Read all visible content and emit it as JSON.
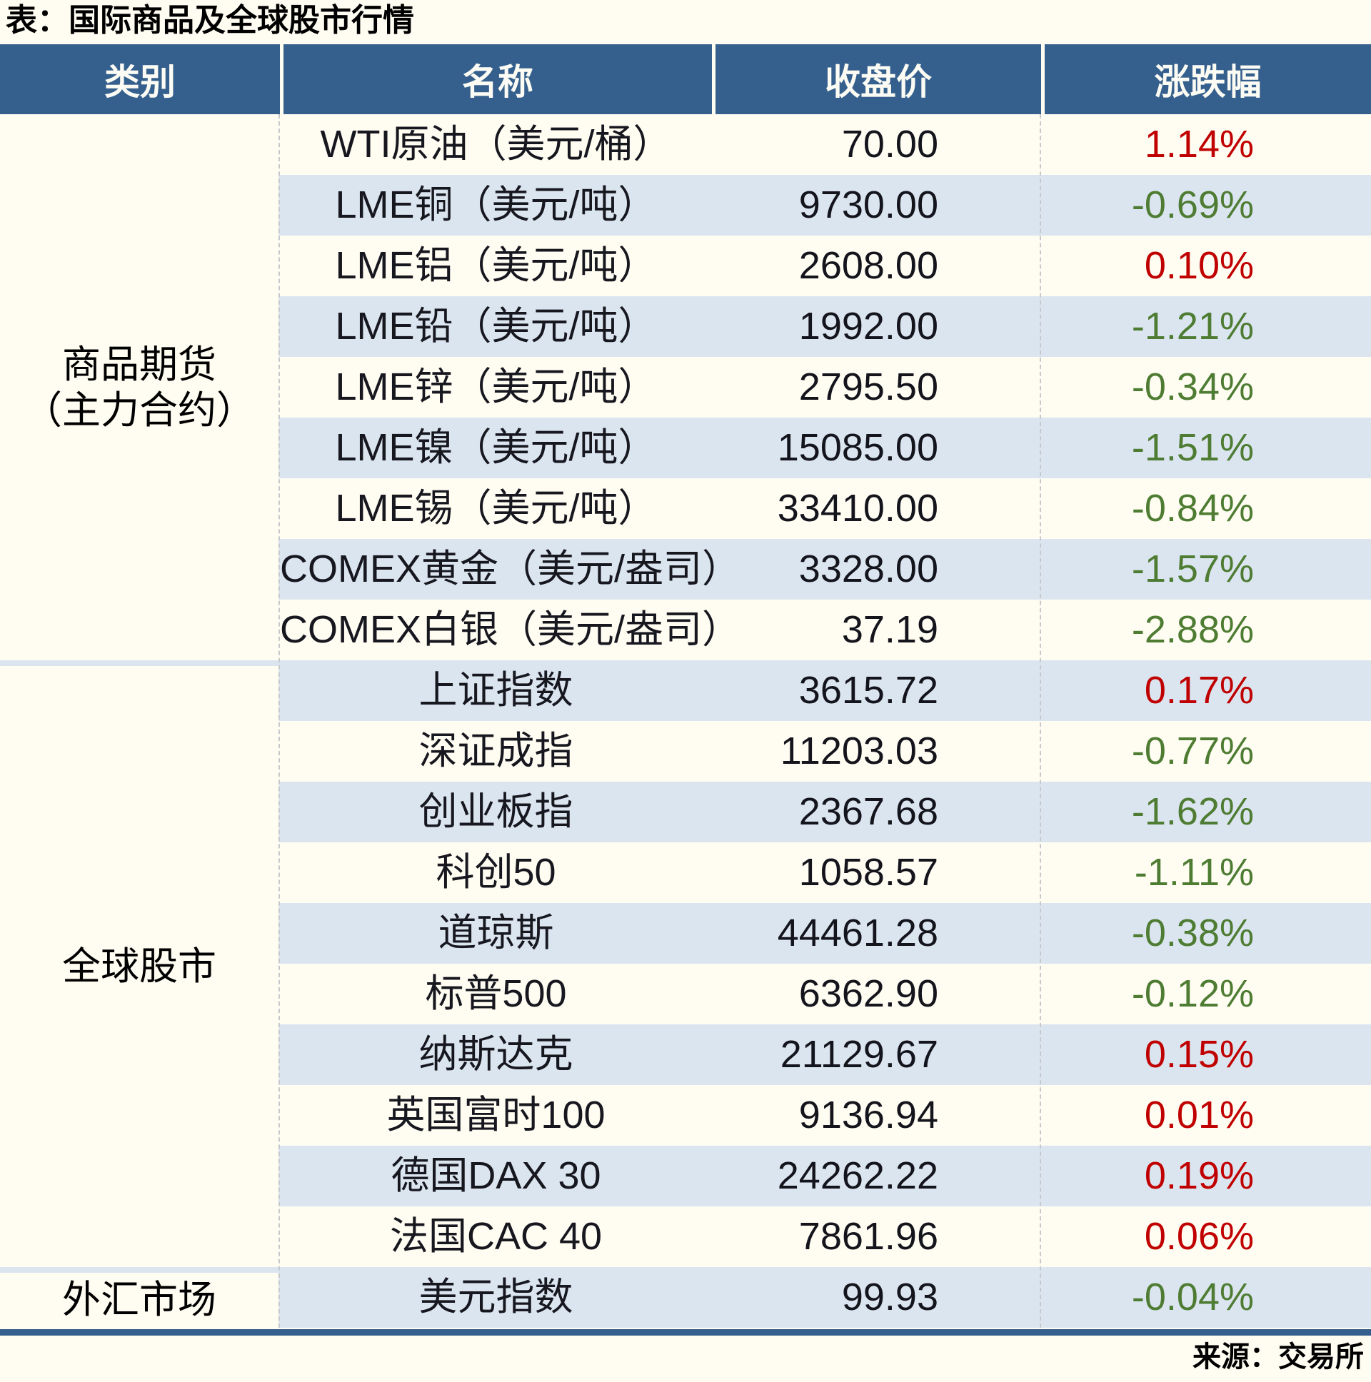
{
  "title": "表：国际商品及全球股市行情",
  "source": "来源：交易所",
  "columns": [
    "类别",
    "名称",
    "收盘价",
    "涨跌幅"
  ],
  "colors": {
    "header_blue": "#35608D",
    "stripe_blue": "#DBE5F0",
    "background_cream": "#FFFDF2",
    "up_red": "#C00000",
    "down_green": "#4E7C32"
  },
  "sections": [
    {
      "label": "商品期货",
      "label2": "（主力合约）",
      "rows": [
        {
          "name": "WTI原油（美元/桶）",
          "close": "70.00",
          "chg": "1.14%",
          "dir": "up"
        },
        {
          "name": "LME铜（美元/吨）",
          "close": "9730.00",
          "chg": "-0.69%",
          "dir": "down"
        },
        {
          "name": "LME铝（美元/吨）",
          "close": "2608.00",
          "chg": "0.10%",
          "dir": "up"
        },
        {
          "name": "LME铅（美元/吨）",
          "close": "1992.00",
          "chg": "-1.21%",
          "dir": "down"
        },
        {
          "name": "LME锌（美元/吨）",
          "close": "2795.50",
          "chg": "-0.34%",
          "dir": "down"
        },
        {
          "name": "LME镍（美元/吨）",
          "close": "15085.00",
          "chg": "-1.51%",
          "dir": "down"
        },
        {
          "name": "LME锡（美元/吨）",
          "close": "33410.00",
          "chg": "-0.84%",
          "dir": "down"
        },
        {
          "name": "COMEX黄金（美元/盎司）",
          "close": "3328.00",
          "chg": "-1.57%",
          "dir": "down"
        },
        {
          "name": "COMEX白银（美元/盎司）",
          "close": "37.19",
          "chg": "-2.88%",
          "dir": "down"
        }
      ]
    },
    {
      "label": "全球股市",
      "label2": "",
      "rows": [
        {
          "name": "上证指数",
          "close": "3615.72",
          "chg": "0.17%",
          "dir": "up"
        },
        {
          "name": "深证成指",
          "close": "11203.03",
          "chg": "-0.77%",
          "dir": "down"
        },
        {
          "name": "创业板指",
          "close": "2367.68",
          "chg": "-1.62%",
          "dir": "down"
        },
        {
          "name": "科创50",
          "close": "1058.57",
          "chg": "-1.11%",
          "dir": "down"
        },
        {
          "name": "道琼斯",
          "close": "44461.28",
          "chg": "-0.38%",
          "dir": "down"
        },
        {
          "name": "标普500",
          "close": "6362.90",
          "chg": "-0.12%",
          "dir": "down"
        },
        {
          "name": "纳斯达克",
          "close": "21129.67",
          "chg": "0.15%",
          "dir": "up"
        },
        {
          "name": "英国富时100",
          "close": "9136.94",
          "chg": "0.01%",
          "dir": "up"
        },
        {
          "name": "德国DAX 30",
          "close": "24262.22",
          "chg": "0.19%",
          "dir": "up"
        },
        {
          "name": "法国CAC 40",
          "close": "7861.96",
          "chg": "0.06%",
          "dir": "up"
        }
      ]
    },
    {
      "label": "外汇市场",
      "label2": "",
      "rows": [
        {
          "name": "美元指数",
          "close": "99.93",
          "chg": "-0.04%",
          "dir": "down"
        }
      ]
    }
  ],
  "chart_data": {
    "type": "table",
    "title": "表：国际商品及全球股市行情",
    "columns": [
      "类别",
      "名称",
      "收盘价",
      "涨跌幅"
    ],
    "rows": [
      [
        "商品期货（主力合约）",
        "WTI原油（美元/桶）",
        70.0,
        "1.14%"
      ],
      [
        "商品期货（主力合约）",
        "LME铜（美元/吨）",
        9730.0,
        "-0.69%"
      ],
      [
        "商品期货（主力合约）",
        "LME铝（美元/吨）",
        2608.0,
        "0.10%"
      ],
      [
        "商品期货（主力合约）",
        "LME铅（美元/吨）",
        1992.0,
        "-1.21%"
      ],
      [
        "商品期货（主力合约）",
        "LME锌（美元/吨）",
        2795.5,
        "-0.34%"
      ],
      [
        "商品期货（主力合约）",
        "LME镍（美元/吨）",
        15085.0,
        "-1.51%"
      ],
      [
        "商品期货（主力合约）",
        "LME锡（美元/吨）",
        33410.0,
        "-0.84%"
      ],
      [
        "商品期货（主力合约）",
        "COMEX黄金（美元/盎司）",
        3328.0,
        "-1.57%"
      ],
      [
        "商品期货（主力合约）",
        "COMEX白银（美元/盎司）",
        37.19,
        "-2.88%"
      ],
      [
        "全球股市",
        "上证指数",
        3615.72,
        "0.17%"
      ],
      [
        "全球股市",
        "深证成指",
        11203.03,
        "-0.77%"
      ],
      [
        "全球股市",
        "创业板指",
        2367.68,
        "-1.62%"
      ],
      [
        "全球股市",
        "科创50",
        1058.57,
        "-1.11%"
      ],
      [
        "全球股市",
        "道琼斯",
        44461.28,
        "-0.38%"
      ],
      [
        "全球股市",
        "标普500",
        6362.9,
        "-0.12%"
      ],
      [
        "全球股市",
        "纳斯达克",
        21129.67,
        "0.15%"
      ],
      [
        "全球股市",
        "英国富时100",
        9136.94,
        "0.01%"
      ],
      [
        "全球股市",
        "德国DAX 30",
        24262.22,
        "0.19%"
      ],
      [
        "全球股市",
        "法国CAC 40",
        7861.96,
        "0.06%"
      ],
      [
        "外汇市场",
        "美元指数",
        99.93,
        "-0.04%"
      ]
    ],
    "legend_position": "none",
    "grid": "striped-rows"
  }
}
